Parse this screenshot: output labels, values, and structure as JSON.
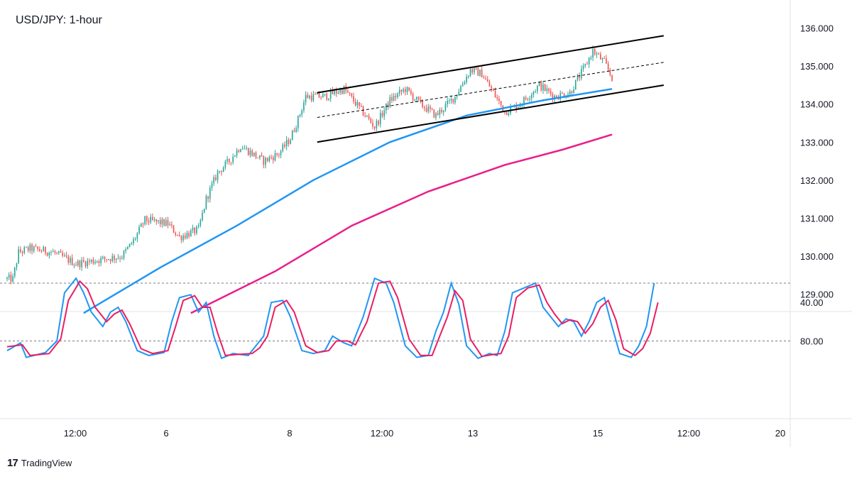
{
  "title": "USD/JPY: 1-hour",
  "brand": {
    "logo": "17",
    "name": "TradingView",
    "icon": "tradingview-logo"
  },
  "colors": {
    "up": "#26a69a",
    "down": "#ef5350",
    "ma_fast": "#2196f3",
    "ma_slow": "#e91e8c",
    "stoch_k": "#2196f3",
    "stoch_d": "#e91e63",
    "channel": "#000000",
    "axis_text": "#131722",
    "border": "#e0e3eb"
  },
  "chart_data": [
    {
      "type": "candlestick",
      "title": "USD/JPY: 1-hour",
      "y_axis": {
        "ticks": [
          "129.000",
          "130.000",
          "131.000",
          "132.000",
          "133.000",
          "134.000",
          "135.000",
          "136.000"
        ],
        "ylim": [
          128.5,
          136.3
        ]
      },
      "x_axis": {
        "ticks": [
          "12:00",
          "6",
          "8",
          "12:00",
          "13",
          "15",
          "12:00",
          "20"
        ]
      },
      "price_path": [
        {
          "x": 0,
          "y": 129.4
        },
        {
          "x": 3,
          "y": 129.4
        },
        {
          "x": 6,
          "y": 130.1
        },
        {
          "x": 12,
          "y": 130.2
        },
        {
          "x": 24,
          "y": 130.1
        },
        {
          "x": 36,
          "y": 129.8
        },
        {
          "x": 48,
          "y": 129.9
        },
        {
          "x": 60,
          "y": 130.0
        },
        {
          "x": 66,
          "y": 130.4
        },
        {
          "x": 72,
          "y": 130.95
        },
        {
          "x": 84,
          "y": 130.85
        },
        {
          "x": 90,
          "y": 130.5
        },
        {
          "x": 100,
          "y": 130.7
        },
        {
          "x": 104,
          "y": 131.5
        },
        {
          "x": 110,
          "y": 132.2
        },
        {
          "x": 116,
          "y": 132.5
        },
        {
          "x": 122,
          "y": 132.9
        },
        {
          "x": 128,
          "y": 132.7
        },
        {
          "x": 134,
          "y": 132.5
        },
        {
          "x": 142,
          "y": 132.7
        },
        {
          "x": 148,
          "y": 133.1
        },
        {
          "x": 152,
          "y": 133.6
        },
        {
          "x": 156,
          "y": 134.2
        },
        {
          "x": 166,
          "y": 134.2
        },
        {
          "x": 176,
          "y": 134.4
        },
        {
          "x": 184,
          "y": 133.9
        },
        {
          "x": 192,
          "y": 133.4
        },
        {
          "x": 200,
          "y": 134.1
        },
        {
          "x": 208,
          "y": 134.4
        },
        {
          "x": 216,
          "y": 134.0
        },
        {
          "x": 224,
          "y": 133.7
        },
        {
          "x": 234,
          "y": 134.2
        },
        {
          "x": 242,
          "y": 134.9
        },
        {
          "x": 248,
          "y": 134.8
        },
        {
          "x": 254,
          "y": 134.3
        },
        {
          "x": 260,
          "y": 133.8
        },
        {
          "x": 268,
          "y": 134.0
        },
        {
          "x": 278,
          "y": 134.5
        },
        {
          "x": 286,
          "y": 134.2
        },
        {
          "x": 294,
          "y": 134.3
        },
        {
          "x": 302,
          "y": 135.0
        },
        {
          "x": 306,
          "y": 135.4
        },
        {
          "x": 312,
          "y": 135.1
        },
        {
          "x": 316,
          "y": 134.7
        }
      ],
      "moving_averages": [
        {
          "name": "",
          "color": "#2196f3",
          "points": [
            {
              "x": 40,
              "y": 128.5
            },
            {
              "x": 80,
              "y": 129.7
            },
            {
              "x": 120,
              "y": 130.8
            },
            {
              "x": 160,
              "y": 132.0
            },
            {
              "x": 200,
              "y": 133.0
            },
            {
              "x": 240,
              "y": 133.7
            },
            {
              "x": 280,
              "y": 134.1
            },
            {
              "x": 316,
              "y": 134.4
            }
          ]
        },
        {
          "name": "",
          "color": "#e91e8c",
          "points": [
            {
              "x": 96,
              "y": 128.5
            },
            {
              "x": 140,
              "y": 129.6
            },
            {
              "x": 180,
              "y": 130.8
            },
            {
              "x": 220,
              "y": 131.7
            },
            {
              "x": 260,
              "y": 132.4
            },
            {
              "x": 290,
              "y": 132.8
            },
            {
              "x": 316,
              "y": 133.2
            }
          ]
        }
      ],
      "channel": {
        "upper": [
          {
            "x": 162,
            "y": 134.3
          },
          {
            "x": 343,
            "y": 135.8
          }
        ],
        "middle": [
          {
            "x": 162,
            "y": 133.65
          },
          {
            "x": 343,
            "y": 135.1
          }
        ],
        "lower": [
          {
            "x": 162,
            "y": 133.0
          },
          {
            "x": 343,
            "y": 134.5
          }
        ]
      }
    },
    {
      "type": "line",
      "y_axis": {
        "ticks": [
          "80.00",
          "40.00"
        ],
        "ylim": [
          0,
          100
        ],
        "reference_lines": [
          80,
          20
        ]
      },
      "series": [
        {
          "name": "",
          "color": "#2196f3",
          "points": [
            {
              "x": 0,
              "y": 90
            },
            {
              "x": 7,
              "y": 82
            },
            {
              "x": 10,
              "y": 97
            },
            {
              "x": 20,
              "y": 92
            },
            {
              "x": 26,
              "y": 80
            },
            {
              "x": 30,
              "y": 30
            },
            {
              "x": 36,
              "y": 15
            },
            {
              "x": 40,
              "y": 30
            },
            {
              "x": 44,
              "y": 50
            },
            {
              "x": 50,
              "y": 65
            },
            {
              "x": 54,
              "y": 50
            },
            {
              "x": 58,
              "y": 45
            },
            {
              "x": 62,
              "y": 60
            },
            {
              "x": 68,
              "y": 90
            },
            {
              "x": 74,
              "y": 95
            },
            {
              "x": 82,
              "y": 92
            },
            {
              "x": 86,
              "y": 60
            },
            {
              "x": 90,
              "y": 35
            },
            {
              "x": 96,
              "y": 32
            },
            {
              "x": 100,
              "y": 50
            },
            {
              "x": 104,
              "y": 40
            },
            {
              "x": 108,
              "y": 75
            },
            {
              "x": 112,
              "y": 98
            },
            {
              "x": 118,
              "y": 93
            },
            {
              "x": 126,
              "y": 95
            },
            {
              "x": 130,
              "y": 85
            },
            {
              "x": 134,
              "y": 75
            },
            {
              "x": 138,
              "y": 40
            },
            {
              "x": 144,
              "y": 38
            },
            {
              "x": 148,
              "y": 55
            },
            {
              "x": 154,
              "y": 90
            },
            {
              "x": 160,
              "y": 93
            },
            {
              "x": 166,
              "y": 90
            },
            {
              "x": 170,
              "y": 75
            },
            {
              "x": 176,
              "y": 82
            },
            {
              "x": 180,
              "y": 85
            },
            {
              "x": 186,
              "y": 55
            },
            {
              "x": 192,
              "y": 15
            },
            {
              "x": 198,
              "y": 20
            },
            {
              "x": 202,
              "y": 40
            },
            {
              "x": 208,
              "y": 85
            },
            {
              "x": 214,
              "y": 97
            },
            {
              "x": 220,
              "y": 95
            },
            {
              "x": 224,
              "y": 70
            },
            {
              "x": 228,
              "y": 50
            },
            {
              "x": 232,
              "y": 20
            },
            {
              "x": 236,
              "y": 42
            },
            {
              "x": 240,
              "y": 85
            },
            {
              "x": 246,
              "y": 98
            },
            {
              "x": 252,
              "y": 93
            },
            {
              "x": 256,
              "y": 95
            },
            {
              "x": 260,
              "y": 70
            },
            {
              "x": 264,
              "y": 30
            },
            {
              "x": 270,
              "y": 25
            },
            {
              "x": 276,
              "y": 20
            },
            {
              "x": 280,
              "y": 45
            },
            {
              "x": 284,
              "y": 55
            },
            {
              "x": 288,
              "y": 65
            },
            {
              "x": 292,
              "y": 57
            },
            {
              "x": 296,
              "y": 60
            },
            {
              "x": 300,
              "y": 75
            },
            {
              "x": 304,
              "y": 60
            },
            {
              "x": 308,
              "y": 40
            },
            {
              "x": 312,
              "y": 35
            },
            {
              "x": 316,
              "y": 65
            },
            {
              "x": 320,
              "y": 93
            },
            {
              "x": 326,
              "y": 97
            },
            {
              "x": 330,
              "y": 85
            },
            {
              "x": 334,
              "y": 65
            },
            {
              "x": 338,
              "y": 20
            }
          ]
        },
        {
          "name": "",
          "color": "#e91e63",
          "points": [
            {
              "x": 0,
              "y": 86
            },
            {
              "x": 8,
              "y": 84
            },
            {
              "x": 12,
              "y": 95
            },
            {
              "x": 22,
              "y": 93
            },
            {
              "x": 28,
              "y": 78
            },
            {
              "x": 32,
              "y": 38
            },
            {
              "x": 38,
              "y": 18
            },
            {
              "x": 42,
              "y": 26
            },
            {
              "x": 46,
              "y": 45
            },
            {
              "x": 52,
              "y": 60
            },
            {
              "x": 56,
              "y": 52
            },
            {
              "x": 60,
              "y": 48
            },
            {
              "x": 64,
              "y": 62
            },
            {
              "x": 70,
              "y": 88
            },
            {
              "x": 76,
              "y": 93
            },
            {
              "x": 84,
              "y": 90
            },
            {
              "x": 88,
              "y": 65
            },
            {
              "x": 92,
              "y": 38
            },
            {
              "x": 98,
              "y": 33
            },
            {
              "x": 102,
              "y": 45
            },
            {
              "x": 106,
              "y": 45
            },
            {
              "x": 110,
              "y": 72
            },
            {
              "x": 114,
              "y": 95
            },
            {
              "x": 120,
              "y": 94
            },
            {
              "x": 128,
              "y": 93
            },
            {
              "x": 132,
              "y": 87
            },
            {
              "x": 136,
              "y": 75
            },
            {
              "x": 140,
              "y": 45
            },
            {
              "x": 146,
              "y": 38
            },
            {
              "x": 150,
              "y": 50
            },
            {
              "x": 156,
              "y": 85
            },
            {
              "x": 162,
              "y": 92
            },
            {
              "x": 168,
              "y": 90
            },
            {
              "x": 172,
              "y": 80
            },
            {
              "x": 178,
              "y": 80
            },
            {
              "x": 182,
              "y": 84
            },
            {
              "x": 188,
              "y": 60
            },
            {
              "x": 194,
              "y": 20
            },
            {
              "x": 200,
              "y": 18
            },
            {
              "x": 204,
              "y": 35
            },
            {
              "x": 210,
              "y": 78
            },
            {
              "x": 216,
              "y": 95
            },
            {
              "x": 222,
              "y": 95
            },
            {
              "x": 226,
              "y": 75
            },
            {
              "x": 230,
              "y": 55
            },
            {
              "x": 234,
              "y": 28
            },
            {
              "x": 238,
              "y": 38
            },
            {
              "x": 242,
              "y": 78
            },
            {
              "x": 248,
              "y": 96
            },
            {
              "x": 254,
              "y": 94
            },
            {
              "x": 258,
              "y": 93
            },
            {
              "x": 262,
              "y": 75
            },
            {
              "x": 266,
              "y": 35
            },
            {
              "x": 272,
              "y": 25
            },
            {
              "x": 278,
              "y": 22
            },
            {
              "x": 282,
              "y": 40
            },
            {
              "x": 286,
              "y": 52
            },
            {
              "x": 290,
              "y": 62
            },
            {
              "x": 294,
              "y": 58
            },
            {
              "x": 298,
              "y": 60
            },
            {
              "x": 302,
              "y": 72
            },
            {
              "x": 306,
              "y": 62
            },
            {
              "x": 310,
              "y": 45
            },
            {
              "x": 314,
              "y": 38
            },
            {
              "x": 318,
              "y": 58
            },
            {
              "x": 322,
              "y": 88
            },
            {
              "x": 328,
              "y": 95
            },
            {
              "x": 332,
              "y": 88
            },
            {
              "x": 336,
              "y": 72
            },
            {
              "x": 340,
              "y": 40
            }
          ]
        }
      ]
    }
  ]
}
